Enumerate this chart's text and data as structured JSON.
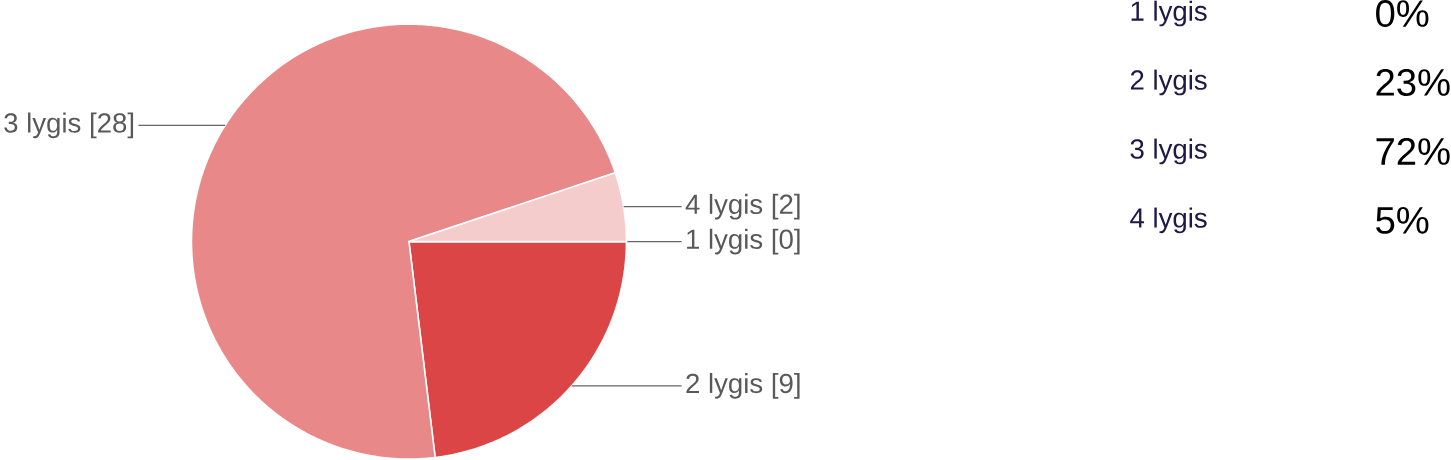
{
  "chart_data": {
    "type": "pie",
    "categories": [
      "1 lygis",
      "2 lygis",
      "3 lygis",
      "4 lygis"
    ],
    "values": [
      0,
      9,
      28,
      2
    ],
    "colors": [
      "#b71c1c",
      "#dc4545",
      "#e88888",
      "#f4cccc"
    ],
    "value_labels": [
      "[0]",
      "[9]",
      "[28]",
      "[2]"
    ],
    "legend": "top right",
    "annotations": [
      "0%",
      "23%",
      "72%",
      "5%"
    ]
  }
}
